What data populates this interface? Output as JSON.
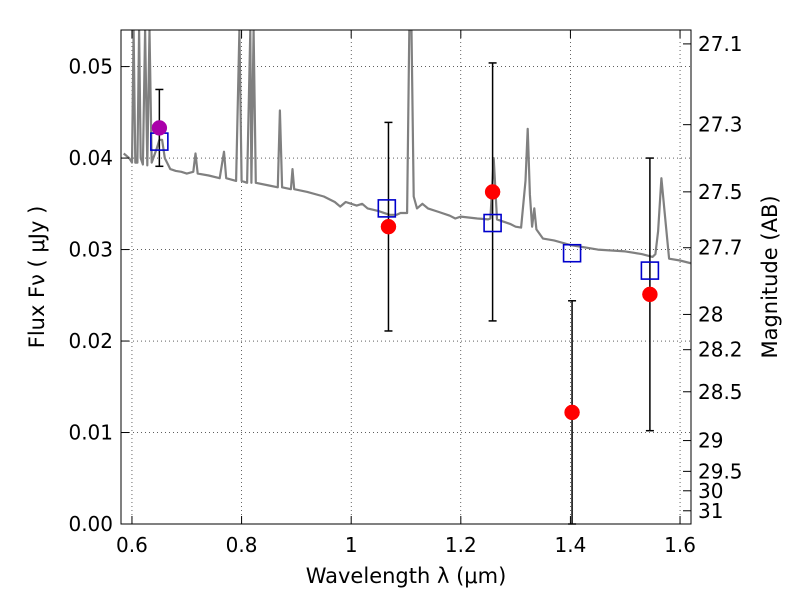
{
  "chart_data": {
    "type": "scatter",
    "title": "",
    "xlabel": "Wavelength  λ (μm)",
    "ylabel": "Flux  Fν  ( μJy )",
    "y2label": "Magnitude (AB)",
    "xlim": [
      0.58,
      1.62
    ],
    "ylim": [
      0.0,
      0.054
    ],
    "grid": true,
    "colors": {
      "spectrum": "#808080",
      "observed": "#ff0000",
      "model": "#0000cc",
      "highlight": "#aa00aa",
      "errorbar": "#000000"
    },
    "x_ticks": [
      {
        "value": 0.6,
        "label": "0.6"
      },
      {
        "value": 0.8,
        "label": "0.8"
      },
      {
        "value": 1.0,
        "label": "1"
      },
      {
        "value": 1.2,
        "label": "1.2"
      },
      {
        "value": 1.4,
        "label": "1.4"
      },
      {
        "value": 1.6,
        "label": "1.6"
      }
    ],
    "y_ticks": [
      {
        "value": 0.0,
        "label": "0.00"
      },
      {
        "value": 0.01,
        "label": "0.01"
      },
      {
        "value": 0.02,
        "label": "0.02"
      },
      {
        "value": 0.03,
        "label": "0.03"
      },
      {
        "value": 0.04,
        "label": "0.04"
      },
      {
        "value": 0.05,
        "label": "0.05"
      }
    ],
    "mag_ticks": [
      {
        "value": 27.1,
        "label": "27.1"
      },
      {
        "value": 27.3,
        "label": "27.3"
      },
      {
        "value": 27.5,
        "label": "27.5"
      },
      {
        "value": 27.7,
        "label": "27.7"
      },
      {
        "value": 28.0,
        "label": "28"
      },
      {
        "value": 28.2,
        "label": "28.2"
      },
      {
        "value": 28.5,
        "label": "28.5"
      },
      {
        "value": 29.0,
        "label": "29"
      },
      {
        "value": 29.5,
        "label": "29.5"
      },
      {
        "value": 30.0,
        "label": "30"
      },
      {
        "value": 31.0,
        "label": "31"
      }
    ],
    "observed": [
      {
        "x": 0.65,
        "y": 0.0433,
        "err": 0.0042,
        "color": "#aa00aa"
      },
      {
        "x": 1.068,
        "y": 0.0325,
        "err": 0.0114,
        "color": "#ff0000"
      },
      {
        "x": 1.258,
        "y": 0.0363,
        "err": 0.0141,
        "color": "#ff0000"
      },
      {
        "x": 1.403,
        "y": 0.0122,
        "err": 0.0122,
        "color": "#ff0000"
      },
      {
        "x": 1.545,
        "y": 0.0251,
        "err": 0.0149,
        "color": "#ff0000"
      }
    ],
    "model_points": [
      {
        "x": 0.65,
        "y": 0.0418
      },
      {
        "x": 1.065,
        "y": 0.0345
      },
      {
        "x": 1.258,
        "y": 0.0329
      },
      {
        "x": 1.403,
        "y": 0.0296
      },
      {
        "x": 1.545,
        "y": 0.0277
      }
    ],
    "spectrum": [
      [
        0.585,
        0.0405
      ],
      [
        0.595,
        0.04
      ],
      [
        0.6,
        0.0395
      ],
      [
        0.603,
        0.054
      ],
      [
        0.606,
        0.0395
      ],
      [
        0.61,
        0.0395
      ],
      [
        0.613,
        0.054
      ],
      [
        0.616,
        0.04
      ],
      [
        0.62,
        0.0393
      ],
      [
        0.624,
        0.054
      ],
      [
        0.628,
        0.0392
      ],
      [
        0.632,
        0.054
      ],
      [
        0.636,
        0.0395
      ],
      [
        0.645,
        0.041
      ],
      [
        0.65,
        0.042
      ],
      [
        0.655,
        0.042
      ],
      [
        0.66,
        0.04
      ],
      [
        0.67,
        0.0388
      ],
      [
        0.68,
        0.0386
      ],
      [
        0.69,
        0.0385
      ],
      [
        0.7,
        0.0383
      ],
      [
        0.712,
        0.0385
      ],
      [
        0.716,
        0.0405
      ],
      [
        0.72,
        0.0383
      ],
      [
        0.74,
        0.0381
      ],
      [
        0.76,
        0.0378
      ],
      [
        0.768,
        0.0407
      ],
      [
        0.772,
        0.0378
      ],
      [
        0.79,
        0.0375
      ],
      [
        0.796,
        0.054
      ],
      [
        0.8,
        0.0375
      ],
      [
        0.81,
        0.0373
      ],
      [
        0.816,
        0.054
      ],
      [
        0.818,
        0.0373
      ],
      [
        0.822,
        0.054
      ],
      [
        0.826,
        0.0373
      ],
      [
        0.85,
        0.037
      ],
      [
        0.866,
        0.0368
      ],
      [
        0.87,
        0.0452
      ],
      [
        0.874,
        0.0368
      ],
      [
        0.89,
        0.0366
      ],
      [
        0.893,
        0.0388
      ],
      [
        0.896,
        0.0366
      ],
      [
        0.92,
        0.0363
      ],
      [
        0.95,
        0.0358
      ],
      [
        0.97,
        0.0352
      ],
      [
        0.98,
        0.0347
      ],
      [
        0.99,
        0.0352
      ],
      [
        1.0,
        0.035
      ],
      [
        1.01,
        0.0348
      ],
      [
        1.02,
        0.035
      ],
      [
        1.03,
        0.0345
      ],
      [
        1.05,
        0.0342
      ],
      [
        1.07,
        0.0338
      ],
      [
        1.083,
        0.0338
      ],
      [
        1.09,
        0.034
      ],
      [
        1.102,
        0.034
      ],
      [
        1.106,
        0.054
      ],
      [
        1.11,
        0.054
      ],
      [
        1.114,
        0.0358
      ],
      [
        1.12,
        0.0345
      ],
      [
        1.13,
        0.035
      ],
      [
        1.14,
        0.0345
      ],
      [
        1.16,
        0.0341
      ],
      [
        1.18,
        0.0337
      ],
      [
        1.19,
        0.0334
      ],
      [
        1.2,
        0.0336
      ],
      [
        1.23,
        0.0334
      ],
      [
        1.25,
        0.0333
      ],
      [
        1.254,
        0.0334
      ],
      [
        1.26,
        0.04
      ],
      [
        1.266,
        0.0333
      ],
      [
        1.28,
        0.033
      ],
      [
        1.29,
        0.0328
      ],
      [
        1.3,
        0.0325
      ],
      [
        1.31,
        0.0324
      ],
      [
        1.318,
        0.0375
      ],
      [
        1.322,
        0.0432
      ],
      [
        1.326,
        0.036
      ],
      [
        1.33,
        0.0325
      ],
      [
        1.334,
        0.0345
      ],
      [
        1.338,
        0.0322
      ],
      [
        1.35,
        0.0312
      ],
      [
        1.37,
        0.031
      ],
      [
        1.4,
        0.0305
      ],
      [
        1.45,
        0.03
      ],
      [
        1.5,
        0.0298
      ],
      [
        1.53,
        0.0295
      ],
      [
        1.55,
        0.0292
      ],
      [
        1.555,
        0.0295
      ],
      [
        1.56,
        0.032
      ],
      [
        1.566,
        0.0378
      ],
      [
        1.572,
        0.034
      ],
      [
        1.58,
        0.029
      ],
      [
        1.6,
        0.0288
      ],
      [
        1.62,
        0.0285
      ]
    ]
  }
}
